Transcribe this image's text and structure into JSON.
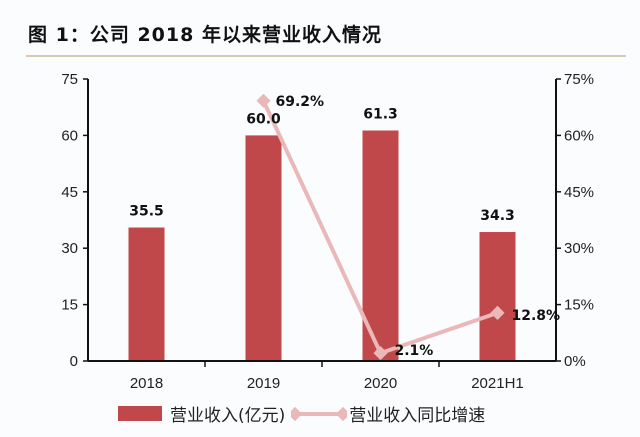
{
  "title": "图 1：公司 2018 年以来营业收入情况",
  "colors": {
    "bar": "#c0474a",
    "line": "#eab8b8",
    "axis": "#111111"
  },
  "legend": {
    "bar_label": "营业收入(亿元)",
    "line_label": "营业收入同比增速"
  },
  "chart_data": {
    "type": "bar",
    "title": "图 1：公司 2018 年以来营业收入情况",
    "categories": [
      "2018",
      "2019",
      "2020",
      "2021H1"
    ],
    "series": [
      {
        "name": "营业收入(亿元)",
        "type": "bar",
        "axis": "left",
        "values": [
          35.5,
          60.0,
          61.3,
          34.3
        ],
        "labels": [
          "35.5",
          "60.0",
          "61.3",
          "34.3"
        ]
      },
      {
        "name": "营业收入同比增速",
        "type": "line",
        "axis": "right",
        "categories": [
          "2019",
          "2020",
          "2021H1"
        ],
        "values": [
          69.2,
          2.1,
          12.8
        ],
        "labels": [
          "69.2%",
          "2.1%",
          "12.8%"
        ]
      }
    ],
    "left_axis": {
      "ylim": [
        0,
        75
      ],
      "ticks": [
        0,
        15,
        30,
        45,
        60,
        75
      ],
      "tick_labels": [
        "0",
        "15",
        "30",
        "45",
        "60",
        "75"
      ]
    },
    "right_axis": {
      "ylim": [
        0,
        75
      ],
      "ticks": [
        0,
        15,
        30,
        45,
        60,
        75
      ],
      "tick_labels": [
        "0%",
        "15%",
        "30%",
        "45%",
        "60%",
        "75%"
      ]
    },
    "xlabel": "",
    "ylabel": "",
    "grid": false,
    "legend_position": "bottom"
  }
}
